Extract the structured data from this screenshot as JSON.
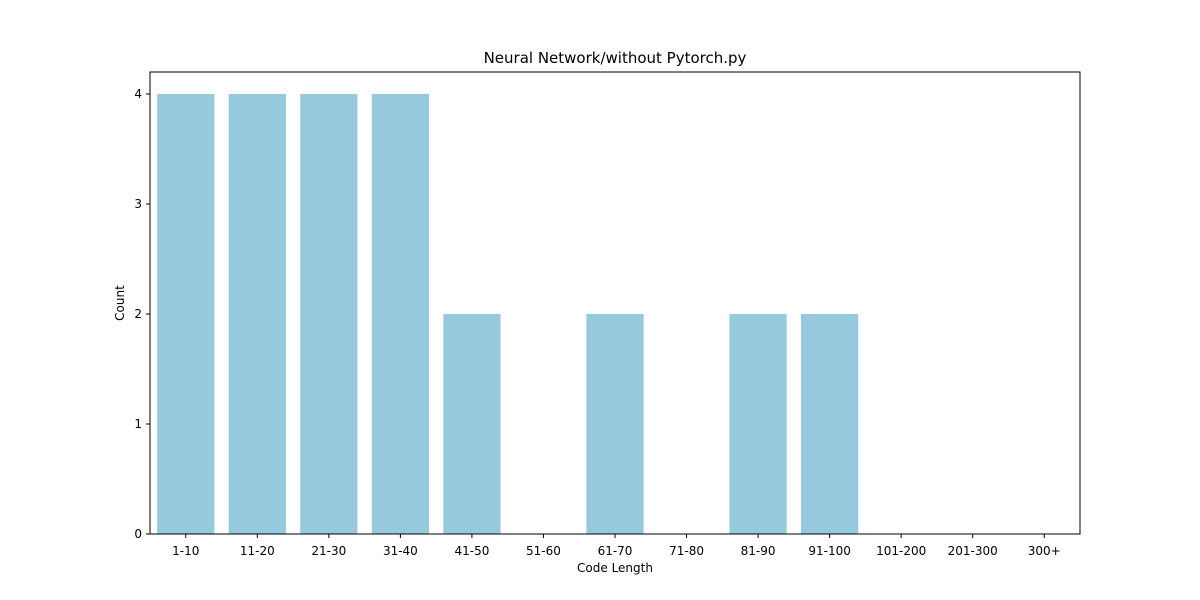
{
  "chart_data": {
    "type": "bar",
    "title": "Neural Network/without Pytorch.py",
    "xlabel": "Code Length",
    "ylabel": "Count",
    "categories": [
      "1-10",
      "11-20",
      "21-30",
      "31-40",
      "41-50",
      "51-60",
      "61-70",
      "71-80",
      "81-90",
      "91-100",
      "101-200",
      "201-300",
      "300+"
    ],
    "values": [
      4,
      4,
      4,
      4,
      2,
      0,
      2,
      0,
      2,
      2,
      0,
      0,
      0
    ],
    "ylim": [
      0,
      4.2
    ],
    "yticks": [
      0,
      1,
      2,
      3,
      4
    ],
    "bar_color": "#96c8de",
    "grid": false,
    "legend": "none"
  }
}
